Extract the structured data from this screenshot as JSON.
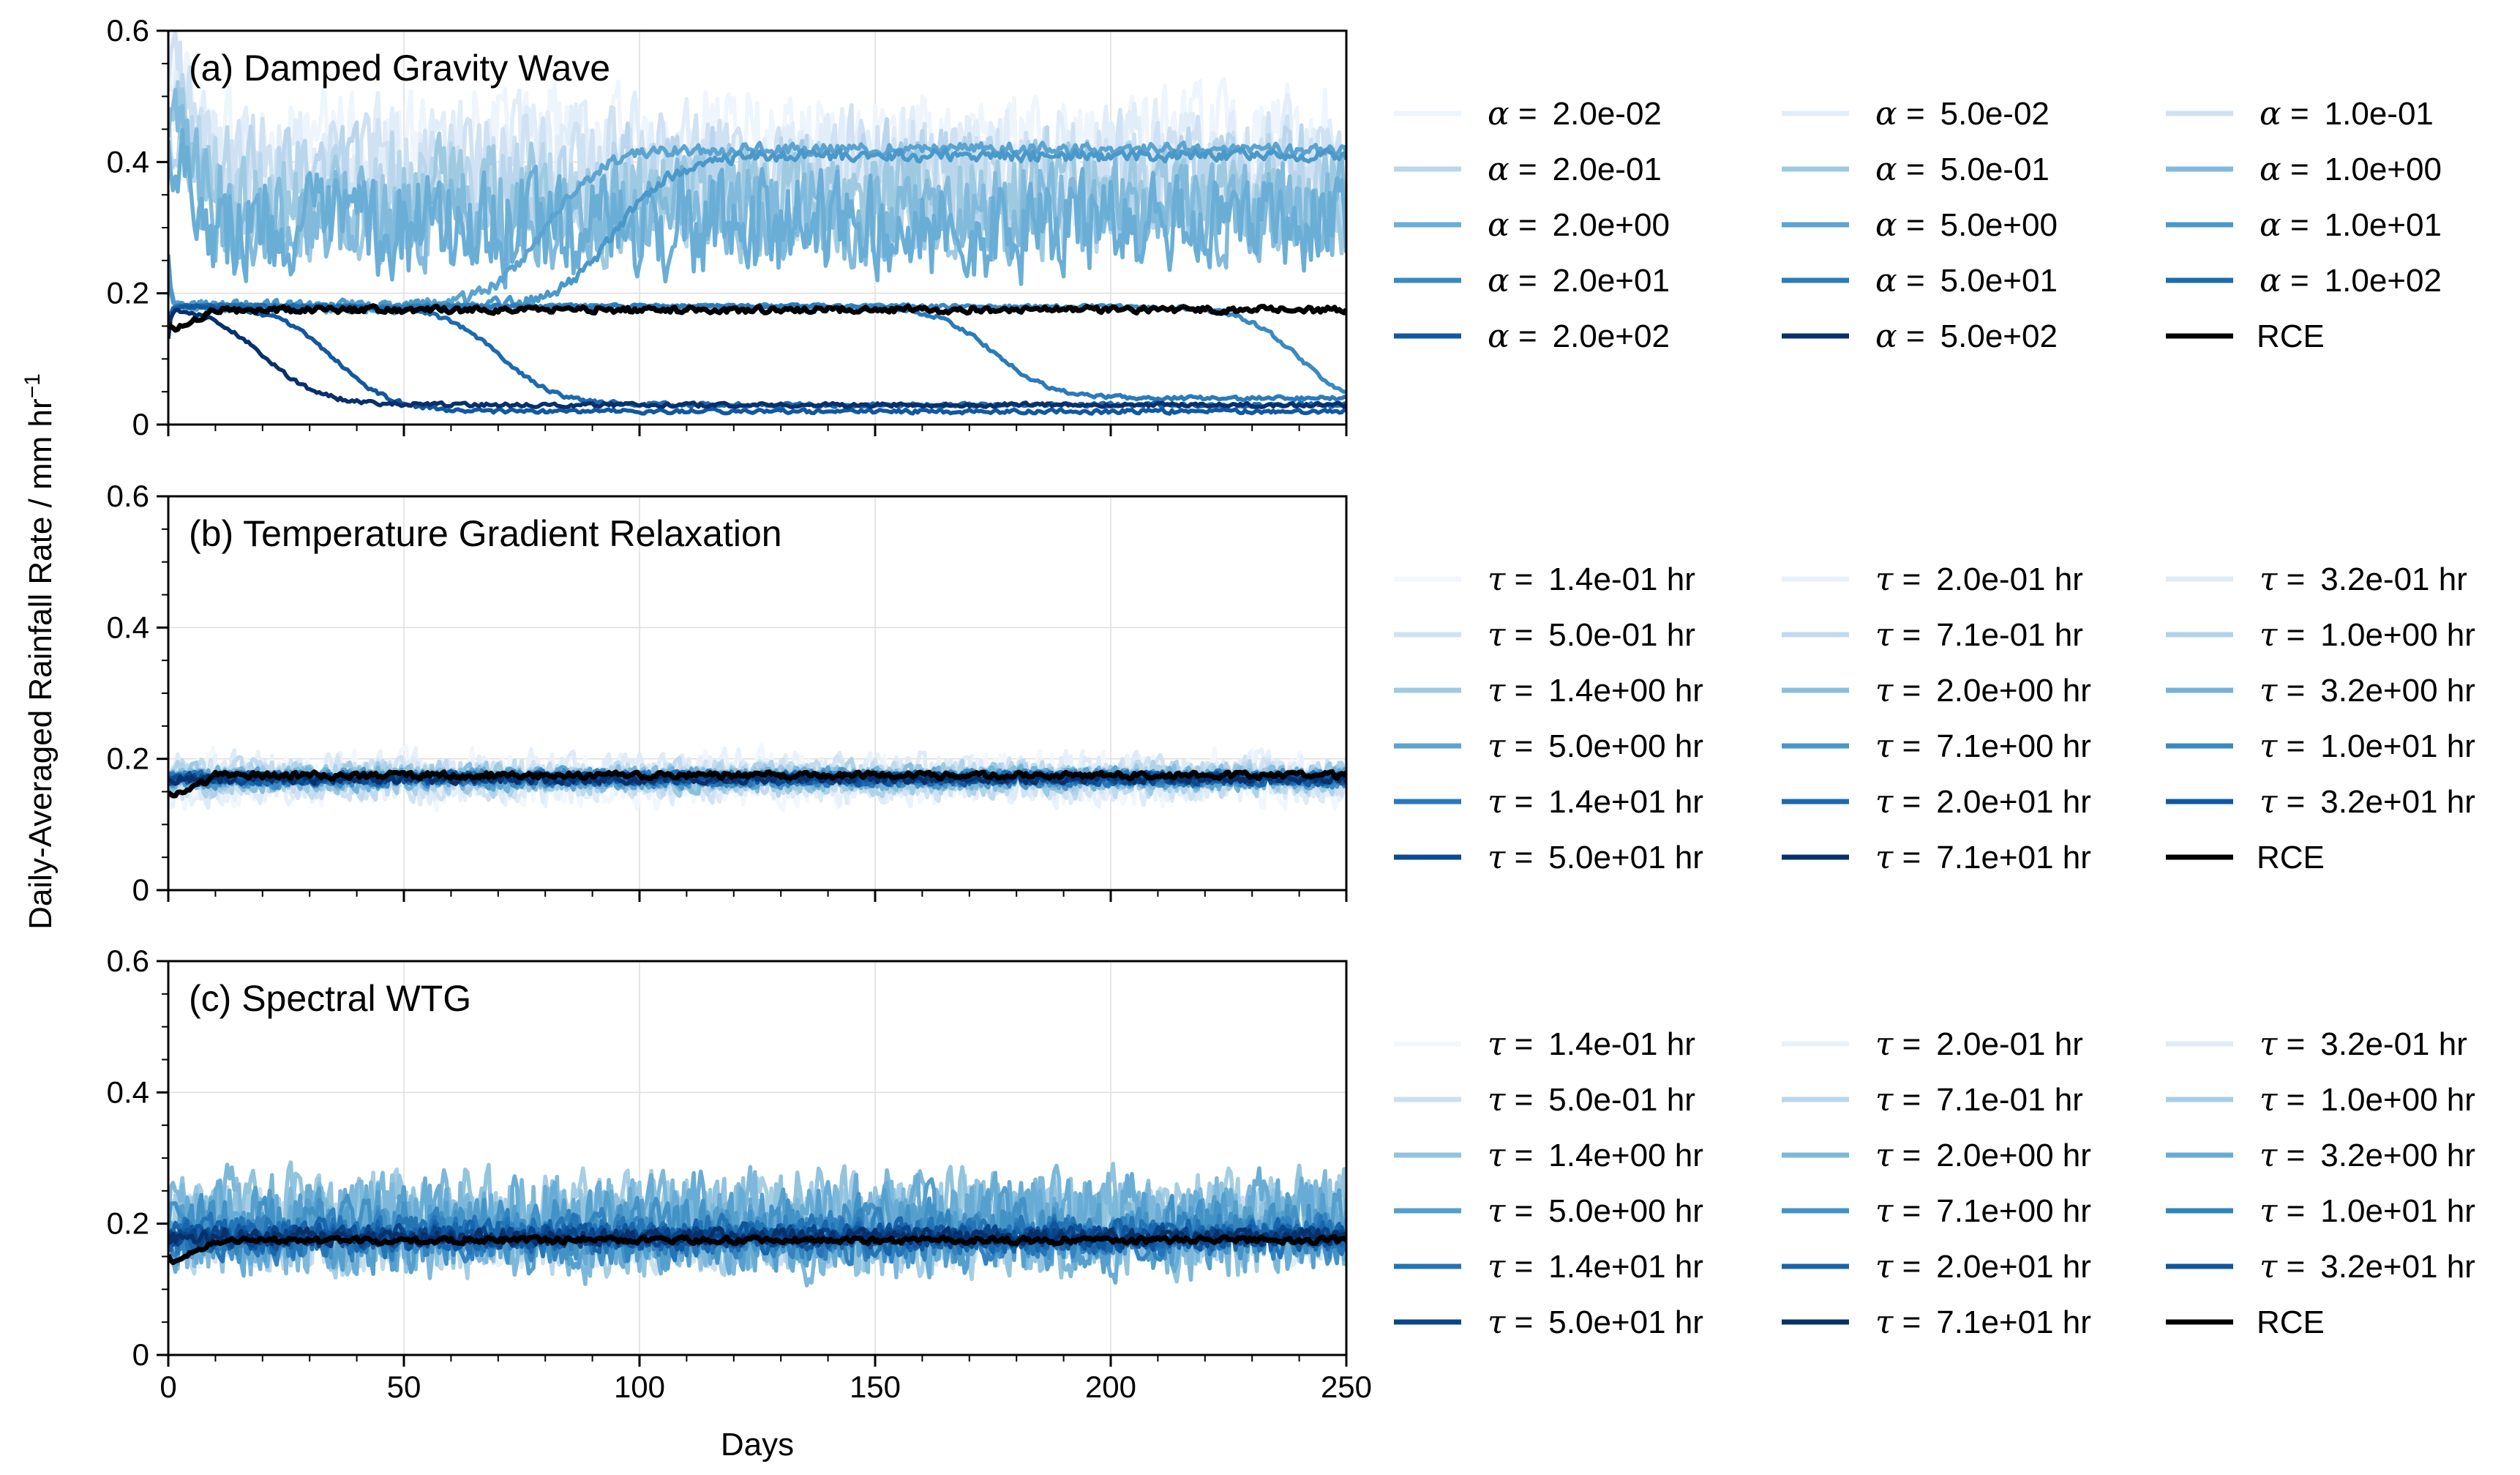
{
  "figure": {
    "ylabel": "Daily-Averaged Rainfall Rate / mm hr",
    "ylabel_sup": "−1",
    "xlabel": "Days"
  },
  "chart_data": [
    {
      "type": "line",
      "title": "(a) Damped Gravity Wave",
      "xlim": [
        0,
        250
      ],
      "ylim": [
        0,
        0.6
      ],
      "xticks": [
        0,
        50,
        100,
        150,
        200,
        250
      ],
      "yticks": [
        0,
        0.2,
        0.4,
        0.6
      ],
      "ytick_labels": [
        "0",
        "0.2",
        "0.4",
        "0.6"
      ],
      "grid": true,
      "legend_placement": "right",
      "series": [
        {
          "symbol": "α",
          "value": "2.0e-02",
          "unit": "",
          "color": "#eef5fc",
          "mean": 0.42,
          "amp": 0.15,
          "start": 0.55
        },
        {
          "symbol": "α",
          "value": "5.0e-02",
          "unit": "",
          "color": "#e1edf8",
          "mean": 0.4,
          "amp": 0.15,
          "start": 0.55
        },
        {
          "symbol": "α",
          "value": "1.0e-01",
          "unit": "",
          "color": "#cfe1f2",
          "mean": 0.38,
          "amp": 0.15,
          "start": 0.55
        },
        {
          "symbol": "α",
          "value": "2.0e-01",
          "unit": "",
          "color": "#b9d6ec",
          "mean": 0.36,
          "amp": 0.15,
          "start": 0.5
        },
        {
          "symbol": "α",
          "value": "5.0e-01",
          "unit": "",
          "color": "#9ecae1",
          "mean": 0.34,
          "amp": 0.14,
          "start": 0.5
        },
        {
          "symbol": "α",
          "value": "1.0e+00",
          "unit": "",
          "color": "#82badb",
          "mean": 0.32,
          "amp": 0.13,
          "start": 0.45
        },
        {
          "symbol": "α",
          "value": "2.0e+00",
          "unit": "",
          "color": "#6aaed6",
          "mean": 0.3,
          "amp": 0.13,
          "start": 0.45
        },
        {
          "symbol": "α",
          "value": "5.0e+00",
          "unit": "",
          "color": "#5ba3d0",
          "mean": 0.42,
          "amp": 0.015,
          "start": 0.18,
          "transition": 80
        },
        {
          "symbol": "α",
          "value": "1.0e+01",
          "unit": "",
          "color": "#4a98c9",
          "mean": 0.41,
          "amp": 0.015,
          "start": 0.18,
          "transition": 95
        },
        {
          "symbol": "α",
          "value": "2.0e+01",
          "unit": "",
          "color": "#3a8ac2",
          "mean": 0.02,
          "amp": 0.005,
          "start": 0.18,
          "transition": 240
        },
        {
          "symbol": "α",
          "value": "5.0e+01",
          "unit": "",
          "color": "#2b7bba",
          "mean": 0.04,
          "amp": 0.005,
          "start": 0.18,
          "transition": 175
        },
        {
          "symbol": "α",
          "value": "1.0e+02",
          "unit": "",
          "color": "#1d6aaf",
          "mean": 0.03,
          "amp": 0.005,
          "start": 0.18,
          "transition": 70
        },
        {
          "symbol": "α",
          "value": "2.0e+02",
          "unit": "",
          "color": "#1258a0",
          "mean": 0.02,
          "amp": 0.005,
          "start": 0.18,
          "transition": 35
        },
        {
          "symbol": "α",
          "value": "5.0e+02",
          "unit": "",
          "color": "#08306b",
          "mean": 0.03,
          "amp": 0.005,
          "start": 0.18,
          "transition": 20
        },
        {
          "symbol": "",
          "value": "",
          "unit": "",
          "name": "RCE",
          "color": "#000000",
          "mean": 0.175,
          "amp": 0.008,
          "start": 0.14,
          "rce": true
        }
      ]
    },
    {
      "type": "line",
      "title": "(b) Temperature Gradient Relaxation",
      "xlim": [
        0,
        250
      ],
      "ylim": [
        0,
        0.6
      ],
      "xticks": [
        0,
        50,
        100,
        150,
        200,
        250
      ],
      "yticks": [
        0,
        0.2,
        0.4,
        0.6
      ],
      "ytick_labels": [
        "0",
        "0.2",
        "0.4",
        "0.6"
      ],
      "grid": true,
      "legend_placement": "right",
      "series": [
        {
          "symbol": "τ",
          "value": "1.4e-01",
          "unit": "hr",
          "color": "#f1f7fd",
          "mean": 0.17,
          "amp": 0.07
        },
        {
          "symbol": "τ",
          "value": "2.0e-01",
          "unit": "hr",
          "color": "#e8f1fa",
          "mean": 0.17,
          "amp": 0.065
        },
        {
          "symbol": "τ",
          "value": "3.2e-01",
          "unit": "hr",
          "color": "#deebf7",
          "mean": 0.17,
          "amp": 0.06
        },
        {
          "symbol": "τ",
          "value": "5.0e-01",
          "unit": "hr",
          "color": "#d0e2f2",
          "mean": 0.17,
          "amp": 0.05
        },
        {
          "symbol": "τ",
          "value": "7.1e-01",
          "unit": "hr",
          "color": "#c2d9ee",
          "mean": 0.17,
          "amp": 0.045
        },
        {
          "symbol": "τ",
          "value": "1.0e+00",
          "unit": "hr",
          "color": "#b0d2e8",
          "mean": 0.17,
          "amp": 0.04
        },
        {
          "symbol": "τ",
          "value": "1.4e+00",
          "unit": "hr",
          "color": "#9ecae1",
          "mean": 0.17,
          "amp": 0.035
        },
        {
          "symbol": "τ",
          "value": "2.0e+00",
          "unit": "hr",
          "color": "#89bedc",
          "mean": 0.17,
          "amp": 0.03
        },
        {
          "symbol": "τ",
          "value": "3.2e+00",
          "unit": "hr",
          "color": "#72b2d8",
          "mean": 0.17,
          "amp": 0.028
        },
        {
          "symbol": "τ",
          "value": "5.0e+00",
          "unit": "hr",
          "color": "#5ca4d0",
          "mean": 0.17,
          "amp": 0.025
        },
        {
          "symbol": "τ",
          "value": "7.1e+00",
          "unit": "hr",
          "color": "#4997c9",
          "mean": 0.17,
          "amp": 0.022
        },
        {
          "symbol": "τ",
          "value": "1.0e+01",
          "unit": "hr",
          "color": "#3888c1",
          "mean": 0.17,
          "amp": 0.02
        },
        {
          "symbol": "τ",
          "value": "1.4e+01",
          "unit": "hr",
          "color": "#2879b9",
          "mean": 0.17,
          "amp": 0.018
        },
        {
          "symbol": "τ",
          "value": "2.0e+01",
          "unit": "hr",
          "color": "#1b69af",
          "mean": 0.17,
          "amp": 0.016
        },
        {
          "symbol": "τ",
          "value": "3.2e+01",
          "unit": "hr",
          "color": "#1058a2",
          "mean": 0.17,
          "amp": 0.015
        },
        {
          "symbol": "τ",
          "value": "5.0e+01",
          "unit": "hr",
          "color": "#0a4a90",
          "mean": 0.17,
          "amp": 0.013
        },
        {
          "symbol": "τ",
          "value": "7.1e+01",
          "unit": "hr",
          "color": "#08306b",
          "mean": 0.17,
          "amp": 0.012
        },
        {
          "symbol": "",
          "value": "",
          "unit": "",
          "name": "RCE",
          "color": "#000000",
          "mean": 0.175,
          "amp": 0.008,
          "start": 0.14,
          "rce": true
        }
      ]
    },
    {
      "type": "line",
      "title": "(c) Spectral WTG",
      "xlim": [
        0,
        250
      ],
      "ylim": [
        0,
        0.6
      ],
      "xticks": [
        0,
        50,
        100,
        150,
        200,
        250
      ],
      "yticks": [
        0,
        0.2,
        0.4,
        0.6
      ],
      "ytick_labels": [
        "0",
        "0.2",
        "0.4",
        "0.6"
      ],
      "grid": true,
      "legend_placement": "right",
      "series": [
        {
          "symbol": "τ",
          "value": "1.4e-01",
          "unit": "hr",
          "color": "#f1f7fd",
          "mean": 0.18,
          "amp": 0.06
        },
        {
          "symbol": "τ",
          "value": "2.0e-01",
          "unit": "hr",
          "color": "#e8f1fa",
          "mean": 0.18,
          "amp": 0.065
        },
        {
          "symbol": "τ",
          "value": "3.2e-01",
          "unit": "hr",
          "color": "#deebf7",
          "mean": 0.18,
          "amp": 0.07
        },
        {
          "symbol": "τ",
          "value": "5.0e-01",
          "unit": "hr",
          "color": "#cbdff1",
          "mean": 0.19,
          "amp": 0.09
        },
        {
          "symbol": "τ",
          "value": "7.1e-01",
          "unit": "hr",
          "color": "#b9d6ec",
          "mean": 0.19,
          "amp": 0.1
        },
        {
          "symbol": "τ",
          "value": "1.0e+00",
          "unit": "hr",
          "color": "#a6cee4",
          "mean": 0.2,
          "amp": 0.12
        },
        {
          "symbol": "τ",
          "value": "1.4e+00",
          "unit": "hr",
          "color": "#92c4de",
          "mean": 0.2,
          "amp": 0.13
        },
        {
          "symbol": "τ",
          "value": "2.0e+00",
          "unit": "hr",
          "color": "#7db8da",
          "mean": 0.2,
          "amp": 0.13
        },
        {
          "symbol": "τ",
          "value": "3.2e+00",
          "unit": "hr",
          "color": "#68acd5",
          "mean": 0.2,
          "amp": 0.12
        },
        {
          "symbol": "τ",
          "value": "5.0e+00",
          "unit": "hr",
          "color": "#559fcd",
          "mean": 0.19,
          "amp": 0.1
        },
        {
          "symbol": "τ",
          "value": "7.1e+00",
          "unit": "hr",
          "color": "#4392c6",
          "mean": 0.19,
          "amp": 0.08
        },
        {
          "symbol": "τ",
          "value": "1.0e+01",
          "unit": "hr",
          "color": "#3383be",
          "mean": 0.18,
          "amp": 0.06
        },
        {
          "symbol": "τ",
          "value": "1.4e+01",
          "unit": "hr",
          "color": "#2474b6",
          "mean": 0.18,
          "amp": 0.05
        },
        {
          "symbol": "τ",
          "value": "2.0e+01",
          "unit": "hr",
          "color": "#1865ac",
          "mean": 0.18,
          "amp": 0.04
        },
        {
          "symbol": "τ",
          "value": "3.2e+01",
          "unit": "hr",
          "color": "#0e559d",
          "mean": 0.18,
          "amp": 0.03
        },
        {
          "symbol": "τ",
          "value": "5.0e+01",
          "unit": "hr",
          "color": "#09458a",
          "mean": 0.18,
          "amp": 0.025
        },
        {
          "symbol": "τ",
          "value": "7.1e+01",
          "unit": "hr",
          "color": "#08306b",
          "mean": 0.18,
          "amp": 0.02
        },
        {
          "symbol": "",
          "value": "",
          "unit": "",
          "name": "RCE",
          "color": "#000000",
          "mean": 0.175,
          "amp": 0.008,
          "start": 0.14,
          "rce": true
        }
      ]
    }
  ]
}
